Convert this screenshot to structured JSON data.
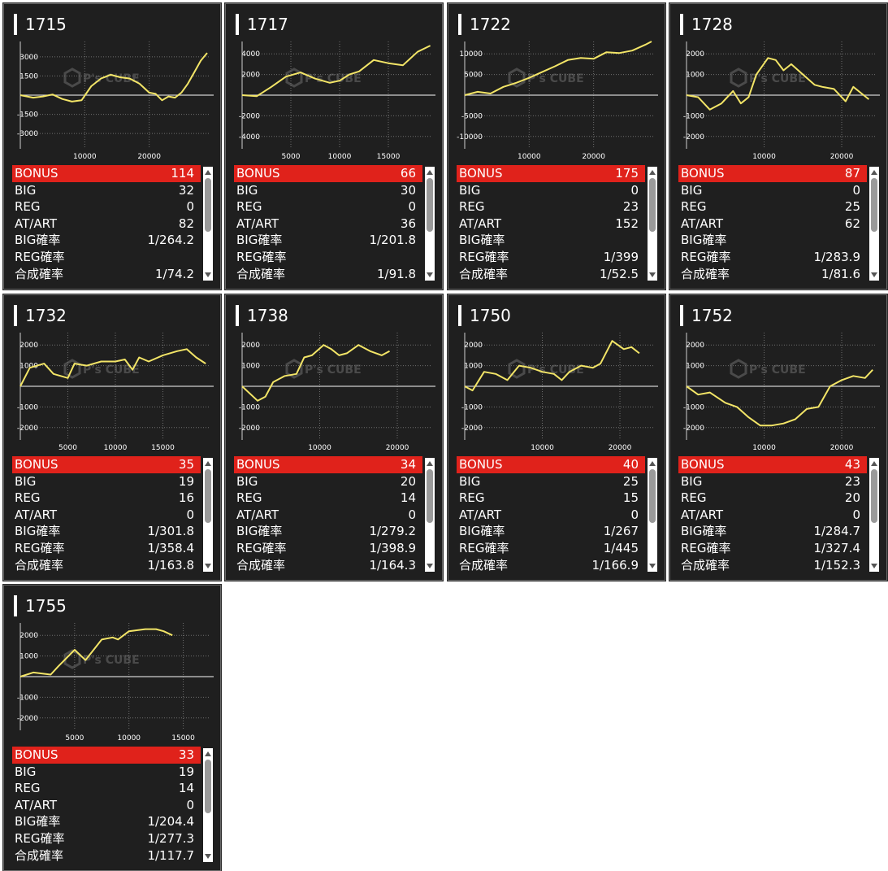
{
  "labels": {
    "bonus": "BONUS",
    "big": "BIG",
    "reg": "REG",
    "at": "AT/ART",
    "big_rate": "BIG確率",
    "reg_rate": "REG確率",
    "total_rate": "合成確率"
  },
  "colors": {
    "line": "#f3e567",
    "bonus_bg": "#e0221b",
    "card_bg": "#1f1f1f",
    "axis": "#cfcfcf",
    "grid": "#6f6f6f"
  },
  "watermark": "P's CUBE",
  "machines": [
    {
      "id": "1715",
      "stats": {
        "bonus": "114",
        "big": "32",
        "reg": "0",
        "at": "82",
        "big_rate": "1/264.2",
        "reg_rate": "",
        "total_rate": "1/74.2"
      }
    },
    {
      "id": "1717",
      "stats": {
        "bonus": "66",
        "big": "30",
        "reg": "0",
        "at": "36",
        "big_rate": "1/201.8",
        "reg_rate": "",
        "total_rate": "1/91.8"
      }
    },
    {
      "id": "1722",
      "stats": {
        "bonus": "175",
        "big": "0",
        "reg": "23",
        "at": "152",
        "big_rate": "",
        "reg_rate": "1/399",
        "total_rate": "1/52.5"
      }
    },
    {
      "id": "1728",
      "stats": {
        "bonus": "87",
        "big": "0",
        "reg": "25",
        "at": "62",
        "big_rate": "",
        "reg_rate": "1/283.9",
        "total_rate": "1/81.6"
      }
    },
    {
      "id": "1732",
      "stats": {
        "bonus": "35",
        "big": "19",
        "reg": "16",
        "at": "0",
        "big_rate": "1/301.8",
        "reg_rate": "1/358.4",
        "total_rate": "1/163.8"
      }
    },
    {
      "id": "1738",
      "stats": {
        "bonus": "34",
        "big": "20",
        "reg": "14",
        "at": "0",
        "big_rate": "1/279.2",
        "reg_rate": "1/398.9",
        "total_rate": "1/164.3"
      }
    },
    {
      "id": "1750",
      "stats": {
        "bonus": "40",
        "big": "25",
        "reg": "15",
        "at": "0",
        "big_rate": "1/267",
        "reg_rate": "1/445",
        "total_rate": "1/166.9"
      }
    },
    {
      "id": "1752",
      "stats": {
        "bonus": "43",
        "big": "23",
        "reg": "20",
        "at": "0",
        "big_rate": "1/284.7",
        "reg_rate": "1/327.4",
        "total_rate": "1/152.3"
      }
    },
    {
      "id": "1755",
      "stats": {
        "bonus": "33",
        "big": "19",
        "reg": "14",
        "at": "0",
        "big_rate": "1/204.4",
        "reg_rate": "1/277.3",
        "total_rate": "1/117.7"
      }
    }
  ],
  "chart_data": [
    {
      "type": "line",
      "xlim": [
        0,
        29500
      ],
      "ylim": [
        -4200,
        4200
      ],
      "xticks": [
        10000,
        20000
      ],
      "yticks": [
        3000,
        1500,
        -1500,
        -3000
      ],
      "x": [
        0,
        2000,
        3500,
        5000,
        6500,
        8000,
        9500,
        11000,
        12500,
        14000,
        15500,
        17000,
        18500,
        20000,
        21000,
        22000,
        23000,
        24000,
        25000,
        26000,
        27000,
        28000,
        29000
      ],
      "y": [
        0,
        -200,
        -100,
        50,
        -300,
        -500,
        -400,
        700,
        1300,
        1600,
        1400,
        1300,
        900,
        200,
        100,
        -400,
        -100,
        -200,
        200,
        900,
        1800,
        2700,
        3300
      ]
    },
    {
      "type": "line",
      "xlim": [
        0,
        19500
      ],
      "ylim": [
        -5200,
        5200
      ],
      "xticks": [
        5000,
        10000,
        15000
      ],
      "yticks": [
        4000,
        2000,
        -2000,
        -4000
      ],
      "x": [
        0,
        1500,
        3000,
        4500,
        6000,
        7500,
        9000,
        10000,
        11000,
        12000,
        13500,
        15000,
        16500,
        18000,
        19300
      ],
      "y": [
        0,
        -100,
        800,
        1800,
        2200,
        1600,
        1200,
        1400,
        2000,
        2300,
        3400,
        3100,
        2900,
        4200,
        4800
      ]
    },
    {
      "type": "line",
      "xlim": [
        0,
        29500
      ],
      "ylim": [
        -13000,
        13000
      ],
      "xticks": [
        10000,
        20000
      ],
      "yticks": [
        10000,
        5000,
        -5000,
        -10000
      ],
      "x": [
        0,
        2000,
        4000,
        6000,
        8000,
        10000,
        12000,
        14000,
        16000,
        18000,
        20000,
        22000,
        24000,
        26000,
        28000,
        29000
      ],
      "y": [
        0,
        800,
        400,
        2000,
        3000,
        4200,
        5600,
        7000,
        8500,
        9000,
        8800,
        10400,
        10200,
        10800,
        12200,
        13000
      ]
    },
    {
      "type": "line",
      "xlim": [
        0,
        24500
      ],
      "ylim": [
        -2600,
        2600
      ],
      "xticks": [
        10000,
        20000
      ],
      "yticks": [
        2000,
        1000,
        -1000,
        -2000
      ],
      "x": [
        0,
        1500,
        3000,
        4500,
        6000,
        7000,
        8000,
        9000,
        10500,
        11500,
        12500,
        13500,
        15000,
        16500,
        17500,
        19000,
        20500,
        21500,
        22500,
        23500
      ],
      "y": [
        0,
        -100,
        -700,
        -400,
        200,
        -400,
        -100,
        1000,
        1800,
        1700,
        1200,
        1500,
        1000,
        500,
        400,
        300,
        -300,
        400,
        100,
        -200
      ]
    },
    {
      "type": "line",
      "xlim": [
        0,
        20000
      ],
      "ylim": [
        -2600,
        2600
      ],
      "xticks": [
        5000,
        10000,
        15000
      ],
      "yticks": [
        2000,
        1000,
        -1000,
        -2000
      ],
      "x": [
        0,
        1000,
        2500,
        3500,
        5000,
        5700,
        7000,
        8500,
        10000,
        11000,
        11800,
        12500,
        13500,
        15000,
        16500,
        17500,
        18500,
        19500
      ],
      "y": [
        0,
        900,
        1100,
        600,
        400,
        1100,
        1000,
        1200,
        1200,
        1300,
        800,
        1400,
        1200,
        1500,
        1700,
        1800,
        1400,
        1100
      ]
    },
    {
      "type": "line",
      "xlim": [
        0,
        24500
      ],
      "ylim": [
        -2600,
        2600
      ],
      "xticks": [
        10000,
        20000
      ],
      "yticks": [
        2000,
        1000,
        -1000,
        -2000
      ],
      "x": [
        0,
        2000,
        3000,
        4000,
        5500,
        7000,
        8000,
        9000,
        10500,
        11500,
        12500,
        13500,
        15000,
        16500,
        18000,
        19000
      ],
      "y": [
        0,
        -700,
        -500,
        200,
        500,
        600,
        1400,
        1500,
        2000,
        1800,
        1500,
        1600,
        2000,
        1700,
        1500,
        1700
      ]
    },
    {
      "type": "line",
      "xlim": [
        0,
        24500
      ],
      "ylim": [
        -2600,
        2600
      ],
      "xticks": [
        10000,
        20000
      ],
      "yticks": [
        2000,
        1000,
        -1000,
        -2000
      ],
      "x": [
        0,
        1000,
        2500,
        4000,
        5500,
        7000,
        8500,
        10000,
        11500,
        12500,
        13500,
        15000,
        16500,
        17500,
        19000,
        20500,
        21500,
        22500
      ],
      "y": [
        0,
        -200,
        700,
        600,
        300,
        1000,
        900,
        700,
        600,
        300,
        700,
        1000,
        900,
        1100,
        2200,
        1800,
        1900,
        1600
      ]
    },
    {
      "type": "line",
      "xlim": [
        0,
        24500
      ],
      "ylim": [
        -2600,
        2600
      ],
      "xticks": [
        10000,
        20000
      ],
      "yticks": [
        2000,
        1000,
        -1000,
        -2000
      ],
      "x": [
        0,
        1500,
        3000,
        5000,
        6500,
        8000,
        9500,
        11000,
        12500,
        14000,
        15500,
        17000,
        18500,
        20000,
        21500,
        23000,
        24000
      ],
      "y": [
        0,
        -400,
        -300,
        -800,
        -1000,
        -1500,
        -1900,
        -1900,
        -1800,
        -1600,
        -1100,
        -1000,
        0,
        300,
        500,
        400,
        800
      ]
    },
    {
      "type": "line",
      "xlim": [
        0,
        17500
      ],
      "ylim": [
        -2600,
        2600
      ],
      "xticks": [
        5000,
        10000,
        15000
      ],
      "yticks": [
        2000,
        1000,
        -1000,
        -2000
      ],
      "x": [
        0,
        1200,
        2800,
        3500,
        5000,
        6000,
        7500,
        8500,
        9000,
        10000,
        11500,
        12500,
        13200,
        14000
      ],
      "y": [
        0,
        200,
        100,
        500,
        1300,
        800,
        1800,
        1900,
        1800,
        2200,
        2300,
        2300,
        2200,
        2000
      ]
    }
  ]
}
